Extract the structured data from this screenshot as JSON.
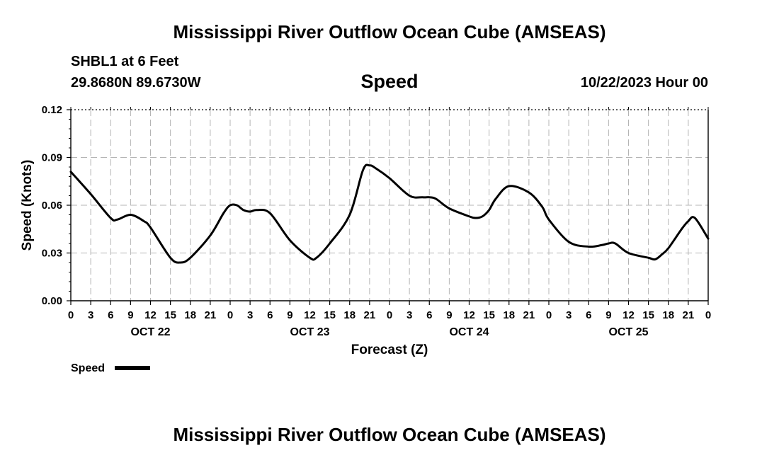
{
  "header": {
    "title": "Mississippi River Outflow Ocean Cube (AMSEAS)",
    "station": "SHBL1 at 6 Feet",
    "coordinates": "29.8680N  89.6730W",
    "variable": "Speed",
    "datetime": "10/22/2023 Hour 00"
  },
  "footer": {
    "title": "Mississippi River Outflow Ocean Cube (AMSEAS)"
  },
  "chart_data": {
    "type": "line",
    "title": "Speed",
    "xlabel": "Forecast (Z)",
    "ylabel": "Speed (Knots)",
    "xlim": [
      0,
      96
    ],
    "ylim": [
      0,
      0.12
    ],
    "yticks": [
      "0.00",
      "0.03",
      "0.06",
      "0.09",
      "0.12"
    ],
    "ytick_values": [
      0,
      0.03,
      0.06,
      0.09,
      0.12
    ],
    "xtick_labels": [
      "0",
      "3",
      "6",
      "9",
      "12",
      "15",
      "18",
      "21",
      "0",
      "3",
      "6",
      "9",
      "12",
      "15",
      "18",
      "21",
      "0",
      "3",
      "6",
      "9",
      "12",
      "15",
      "18",
      "21",
      "0",
      "3",
      "6",
      "9",
      "12",
      "15",
      "18",
      "21",
      "0"
    ],
    "day_labels": [
      {
        "label": "OCT 22",
        "hour": 12
      },
      {
        "label": "OCT 23",
        "hour": 36
      },
      {
        "label": "OCT 24",
        "hour": 60
      },
      {
        "label": "OCT 25",
        "hour": 84
      }
    ],
    "grid": true,
    "legend": {
      "label": "Speed",
      "position": "bottom-left"
    },
    "series": [
      {
        "name": "Speed",
        "color": "#000000",
        "x": [
          0,
          3,
          6,
          7,
          9,
          11,
          12,
          15,
          16.5,
          18,
          21,
          23,
          24,
          25,
          26,
          27,
          28,
          30,
          33,
          36,
          37,
          39,
          42,
          44,
          45,
          46,
          48,
          51,
          53,
          54,
          55,
          57,
          60,
          61,
          62,
          63,
          64,
          66,
          69,
          71,
          72,
          75,
          78,
          80,
          81,
          82,
          84,
          87,
          88,
          89,
          90,
          92,
          93,
          94,
          96
        ],
        "values": [
          0.081,
          0.067,
          0.052,
          0.051,
          0.054,
          0.05,
          0.046,
          0.027,
          0.024,
          0.027,
          0.041,
          0.055,
          0.06,
          0.06,
          0.057,
          0.056,
          0.057,
          0.055,
          0.038,
          0.027,
          0.027,
          0.036,
          0.054,
          0.082,
          0.085,
          0.083,
          0.077,
          0.066,
          0.065,
          0.065,
          0.064,
          0.058,
          0.053,
          0.052,
          0.053,
          0.057,
          0.064,
          0.072,
          0.068,
          0.059,
          0.051,
          0.037,
          0.034,
          0.035,
          0.036,
          0.036,
          0.03,
          0.027,
          0.026,
          0.029,
          0.033,
          0.045,
          0.05,
          0.052,
          0.039
        ]
      }
    ]
  }
}
